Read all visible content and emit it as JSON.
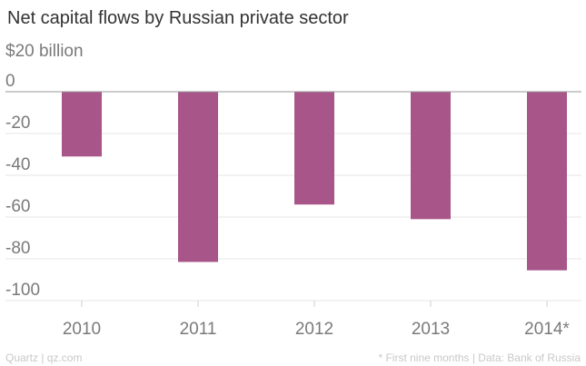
{
  "chart_data": {
    "type": "bar",
    "title": "Net capital flows by Russian private sector",
    "unit_label": "$20 billion",
    "categories": [
      "2010",
      "2011",
      "2012",
      "2013",
      "2014*"
    ],
    "values": [
      -31,
      -81.5,
      -54,
      -61,
      -85.5
    ],
    "ylim": [
      -100,
      20
    ],
    "y_ticks": [
      "-100",
      "-80",
      "-60",
      "-40",
      "-20",
      "0"
    ],
    "grid": true,
    "bar_color": "#a8568a",
    "grid_color": "#e6e6e6",
    "zero_line_color": "#9a9a9a"
  },
  "footer": {
    "source_left": "Quartz | qz.com",
    "source_right": "* First nine months | Data: Bank of Russia"
  }
}
